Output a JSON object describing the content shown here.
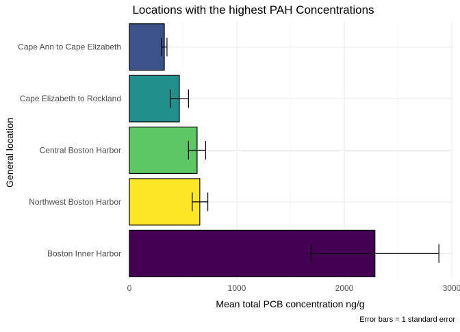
{
  "chart_data": {
    "type": "bar",
    "orientation": "horizontal",
    "title": "Locations with the highest PAH Concentrations",
    "xlabel": "Mean total PCB concentration ng/g",
    "ylabel": "General location",
    "caption": "Error bars = 1 standard error",
    "xlim": [
      0,
      3000
    ],
    "xticks": [
      0,
      1000,
      2000,
      3000
    ],
    "xtick_labels": [
      "0",
      "1000",
      "2000",
      "3000"
    ],
    "grid": true,
    "legend": "none",
    "categories": [
      "Cape Ann to Cape Elizabeth",
      "Cape Elizabeth to Rockland",
      "Central Boston Harbor",
      "Northwest Boston Harbor",
      "Boston Inner Harbor"
    ],
    "values": [
      325,
      465,
      630,
      655,
      2285
    ],
    "error_low": [
      300,
      380,
      550,
      585,
      1690
    ],
    "error_high": [
      350,
      550,
      710,
      730,
      2880
    ],
    "colors": [
      "#3B528B",
      "#21908C",
      "#5DC863",
      "#FDE725",
      "#440154"
    ]
  }
}
